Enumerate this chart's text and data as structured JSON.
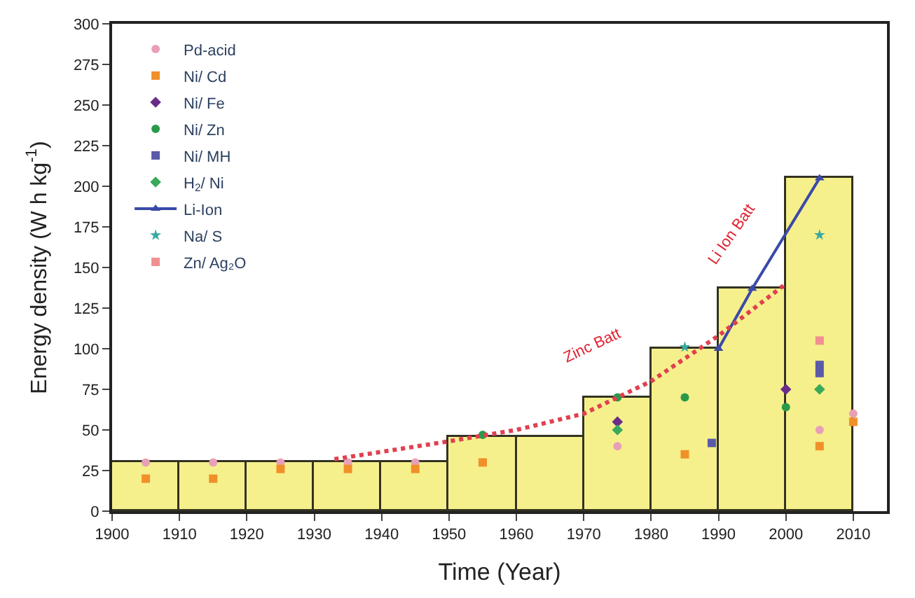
{
  "chart_data": {
    "type": "histogram",
    "xlabel": "Time (Year)",
    "ylabel": "Energy density (W h kg$^{-1}$)",
    "bins": [
      1900,
      1910,
      1920,
      1930,
      1940,
      1950,
      1960,
      1970,
      1980,
      1990,
      2000,
      2010
    ],
    "values": [
      30,
      30,
      30,
      30,
      30,
      46,
      46,
      70,
      100,
      137,
      205
    ],
    "color": "#f6f08c",
    "xlim": [
      1900,
      2015
    ],
    "xticks": [
      1900,
      1910,
      1920,
      1930,
      1940,
      1950,
      1960,
      1970,
      1980,
      1990,
      2000,
      2010
    ],
    "ylim": [
      0,
      300
    ],
    "yticks": [
      0,
      25,
      50,
      75,
      100,
      125,
      150,
      175,
      200,
      225,
      250,
      275,
      300
    ],
    "legend": "top left",
    "series": [
      {
        "name": "Pd-acid",
        "type": "scatter",
        "marker": "circle",
        "color": "#e8a0b8",
        "x": [
          1905,
          1915,
          1925,
          1935,
          1945,
          1975,
          2005,
          2010
        ],
        "values": [
          30,
          30,
          30,
          30,
          30,
          40,
          50,
          60
        ]
      },
      {
        "name": "Ni/ Cd",
        "type": "scatter",
        "marker": "square",
        "color": "#f0902a",
        "x": [
          1905,
          1915,
          1925,
          1935,
          1945,
          1955,
          1985,
          2005,
          2010
        ],
        "values": [
          20,
          20,
          26,
          26,
          26,
          30,
          35,
          40,
          55
        ]
      },
      {
        "name": "Ni/ Fe",
        "type": "scatter",
        "marker": "diamond",
        "color": "#6a2c8a",
        "x": [
          1975,
          2000
        ],
        "values": [
          55,
          75
        ]
      },
      {
        "name": "Ni/ Zn",
        "type": "scatter",
        "marker": "circle",
        "color": "#2a9a4a",
        "x": [
          1955,
          1975,
          1985,
          2000
        ],
        "values": [
          47,
          70,
          70,
          64
        ]
      },
      {
        "name": "Ni/ MH",
        "type": "scatter",
        "marker": "square",
        "color": "#5a5aa8",
        "x": [
          1989,
          2005,
          2005
        ],
        "values": [
          42,
          85,
          90
        ]
      },
      {
        "name": "H$_{2}$/ Ni",
        "type": "scatter",
        "marker": "diamond",
        "color": "#3aaa5a",
        "x": [
          1975,
          2005
        ],
        "values": [
          50,
          75
        ]
      },
      {
        "name": "Li-Ion",
        "type": "line",
        "marker": "triangle",
        "color": "#3a4aa8",
        "x": [
          1990,
          1995,
          2005
        ],
        "values": [
          100,
          137,
          205
        ]
      },
      {
        "name": "Na/ S",
        "type": "scatter",
        "marker": "star",
        "color": "#3aa8a0",
        "x": [
          1985,
          2005
        ],
        "values": [
          101,
          170
        ]
      },
      {
        "name": "Zn/ Ag₂O",
        "type": "scatter",
        "marker": "square",
        "color": "#f09090",
        "x": [
          2005
        ],
        "values": [
          105
        ]
      },
      {
        "type": "line",
        "marker": "none",
        "line_style": "dotted",
        "color": "#e04050",
        "x": [
          1933,
          1950,
          1960,
          1970,
          1980,
          1990,
          2000
        ],
        "values": [
          32,
          43,
          50,
          60,
          80,
          108,
          140
        ]
      }
    ],
    "annotations": [
      "Zinc Batt",
      "Li Ion Batt"
    ]
  }
}
